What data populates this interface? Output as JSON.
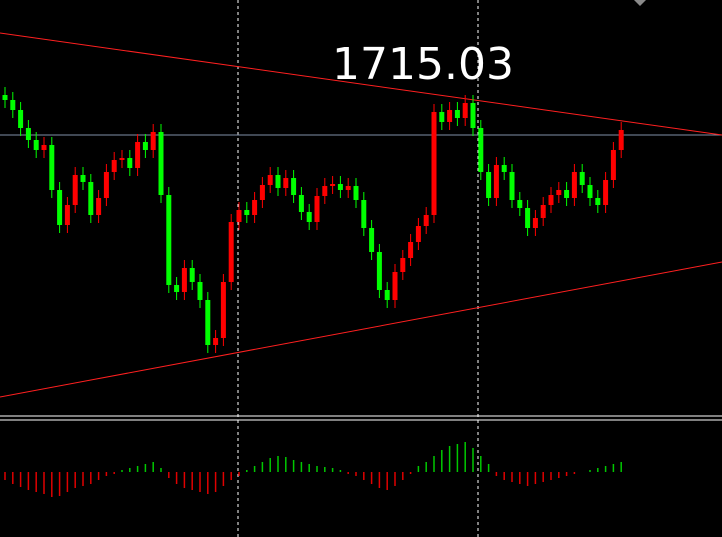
{
  "chart_data": [
    {
      "type": "candlestick",
      "annotation": "1715.03",
      "ylim": [
        1700,
        1720
      ],
      "up_color": "#ff0000",
      "down_color": "#00ff00",
      "open": [
        1715.25,
        1715.0,
        1714.5,
        1713.6,
        1713.0,
        1712.5,
        1712.75,
        1710.5,
        1708.75,
        1709.75,
        1711.25,
        1710.9,
        1709.25,
        1710.1,
        1711.4,
        1712.0,
        1712.1,
        1711.6,
        1712.9,
        1712.5,
        1713.4,
        1710.25,
        1705.75,
        1705.4,
        1706.6,
        1705.9,
        1705.0,
        1702.75,
        1703.1,
        1705.9,
        1708.9,
        1709.5,
        1709.25,
        1710.0,
        1710.75,
        1711.25,
        1710.6,
        1711.1,
        1710.25,
        1709.4,
        1708.9,
        1710.2,
        1710.7,
        1710.8,
        1710.5,
        1710.7,
        1710.0,
        1708.6,
        1707.4,
        1705.5,
        1705.0,
        1706.4,
        1707.1,
        1707.9,
        1708.7,
        1709.25,
        1714.4,
        1713.9,
        1714.5,
        1714.1,
        1714.85,
        1713.6,
        1711.4,
        1710.1,
        1711.75,
        1711.4,
        1710.0,
        1709.6,
        1708.6,
        1709.1,
        1709.75,
        1710.25,
        1710.5,
        1710.1,
        1711.4,
        1710.75,
        1710.1,
        1709.75,
        1711.0,
        1712.5
      ],
      "high": [
        1715.65,
        1715.4,
        1714.9,
        1714.0,
        1713.4,
        1713.15,
        1713.15,
        1710.9,
        1710.15,
        1711.65,
        1711.65,
        1711.3,
        1710.5,
        1711.8,
        1712.4,
        1712.5,
        1712.5,
        1713.3,
        1713.3,
        1713.8,
        1713.8,
        1710.65,
        1706.15,
        1707.0,
        1707.0,
        1706.3,
        1705.4,
        1703.5,
        1706.3,
        1709.3,
        1709.9,
        1709.9,
        1710.4,
        1711.15,
        1711.65,
        1711.65,
        1711.5,
        1711.5,
        1710.65,
        1709.8,
        1710.6,
        1711.1,
        1711.2,
        1711.2,
        1711.1,
        1711.1,
        1710.4,
        1709.0,
        1707.8,
        1705.9,
        1706.8,
        1707.5,
        1708.3,
        1709.1,
        1709.65,
        1714.8,
        1714.8,
        1714.9,
        1714.9,
        1715.25,
        1715.25,
        1714.0,
        1711.8,
        1712.15,
        1712.15,
        1711.8,
        1710.4,
        1710.0,
        1709.5,
        1710.15,
        1710.65,
        1710.9,
        1710.9,
        1711.8,
        1711.8,
        1711.15,
        1710.5,
        1711.4,
        1712.9,
        1713.9
      ],
      "low": [
        1714.6,
        1714.1,
        1713.2,
        1712.6,
        1712.1,
        1712.1,
        1710.1,
        1708.35,
        1708.35,
        1709.35,
        1710.5,
        1708.85,
        1708.85,
        1709.7,
        1711.0,
        1711.6,
        1711.2,
        1711.2,
        1712.1,
        1712.1,
        1709.85,
        1705.35,
        1705.0,
        1705.0,
        1705.5,
        1704.6,
        1702.35,
        1702.35,
        1702.7,
        1705.5,
        1708.5,
        1708.85,
        1708.85,
        1709.6,
        1710.35,
        1710.2,
        1710.2,
        1709.85,
        1709.0,
        1708.5,
        1708.5,
        1709.8,
        1710.3,
        1710.1,
        1710.1,
        1709.6,
        1708.2,
        1707.0,
        1705.1,
        1704.6,
        1704.6,
        1706.0,
        1706.7,
        1707.5,
        1708.3,
        1708.85,
        1713.5,
        1713.5,
        1713.7,
        1713.7,
        1713.2,
        1711.0,
        1709.7,
        1709.7,
        1711.0,
        1709.6,
        1709.2,
        1708.2,
        1708.2,
        1708.7,
        1709.35,
        1709.85,
        1709.7,
        1709.7,
        1710.35,
        1709.7,
        1709.35,
        1709.35,
        1710.6,
        1712.1
      ],
      "close": [
        1715.0,
        1714.5,
        1713.6,
        1713.0,
        1712.5,
        1712.75,
        1710.5,
        1708.75,
        1709.75,
        1711.25,
        1710.9,
        1709.25,
        1710.1,
        1711.4,
        1712.0,
        1712.1,
        1711.6,
        1712.9,
        1712.5,
        1713.4,
        1710.25,
        1705.75,
        1705.4,
        1706.6,
        1705.9,
        1705.0,
        1702.75,
        1703.1,
        1705.9,
        1708.9,
        1709.5,
        1709.25,
        1710.0,
        1710.75,
        1711.25,
        1710.6,
        1711.1,
        1710.25,
        1709.4,
        1708.9,
        1710.2,
        1710.7,
        1710.8,
        1710.5,
        1710.7,
        1710.0,
        1708.6,
        1707.4,
        1705.5,
        1705.0,
        1706.4,
        1707.1,
        1707.9,
        1708.7,
        1709.25,
        1714.4,
        1713.9,
        1714.5,
        1714.1,
        1714.85,
        1713.6,
        1711.4,
        1710.1,
        1711.75,
        1711.4,
        1710.0,
        1709.6,
        1708.6,
        1709.1,
        1709.75,
        1710.25,
        1710.5,
        1710.1,
        1711.4,
        1710.75,
        1710.1,
        1709.75,
        1711.0,
        1712.5,
        1713.5
      ]
    },
    {
      "type": "bar",
      "ylim": [
        -55,
        55
      ],
      "up_color": "#00c800",
      "down_color": "#e00000",
      "values": [
        -8,
        -12,
        -15,
        -18,
        -20,
        -22,
        -25,
        -24,
        -20,
        -16,
        -14,
        -12,
        -8,
        -4,
        -2,
        2,
        4,
        6,
        8,
        10,
        4,
        -6,
        -12,
        -16,
        -18,
        -20,
        -22,
        -20,
        -14,
        -8,
        -4,
        2,
        6,
        10,
        14,
        16,
        15,
        12,
        10,
        8,
        6,
        5,
        4,
        2,
        -2,
        -4,
        -8,
        -12,
        -16,
        -18,
        -14,
        -8,
        -2,
        6,
        10,
        16,
        22,
        26,
        28,
        30,
        24,
        16,
        8,
        -4,
        -8,
        -10,
        -12,
        -14,
        -12,
        -10,
        -8,
        -6,
        -4,
        -2,
        0,
        2,
        4,
        6,
        8,
        10
      ]
    }
  ]
}
